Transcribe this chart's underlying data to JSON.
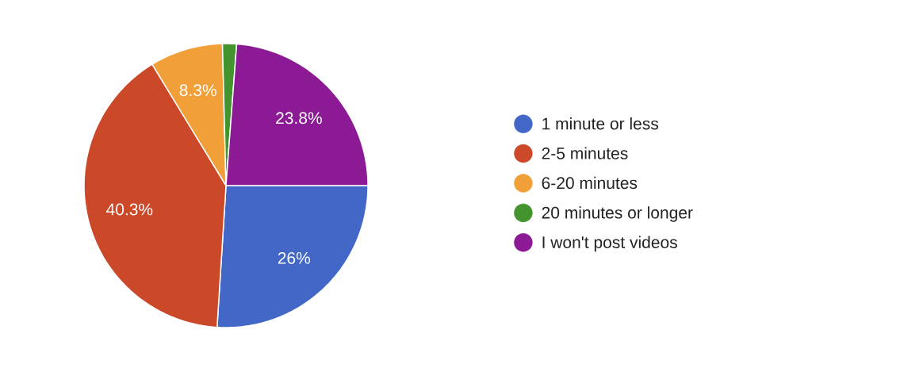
{
  "chart_data": {
    "type": "pie",
    "categories": [
      "1 minute or less",
      "2-5 minutes",
      "6-20 minutes",
      "20 minutes or longer",
      "I won't post videos"
    ],
    "values": [
      26,
      40.3,
      8.3,
      1.6,
      23.8
    ],
    "colors": [
      "#4267c6",
      "#cb4828",
      "#f1a039",
      "#43942f",
      "#8b1a94"
    ],
    "value_labels": [
      "26%",
      "40.3%",
      "8.3%",
      null,
      "23.8%"
    ],
    "legend": "right"
  }
}
